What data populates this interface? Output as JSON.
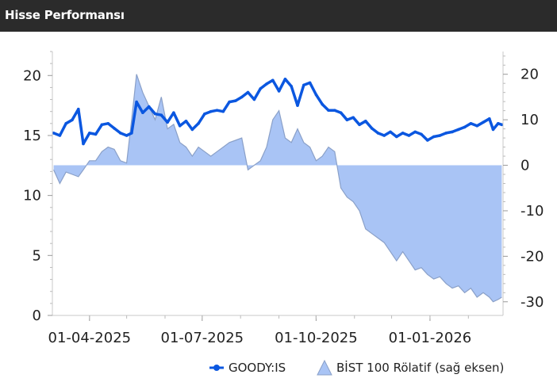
{
  "header": {
    "title": "Hisse Performansı"
  },
  "colors": {
    "header_bg": "#2b2b2b",
    "price_line": "#0b57e0",
    "relative_fill": "#a9c4f5",
    "relative_stroke": "#8aa0c8",
    "axis": "#c8c8c8"
  },
  "chart_data": {
    "type": "line",
    "title": "",
    "xlabel": "",
    "ylabel": "",
    "y_left_lim": [
      0,
      22
    ],
    "y_right_lim": [
      -33,
      25
    ],
    "y_left_ticks": [
      0,
      5,
      10,
      15,
      20
    ],
    "y_right_ticks": [
      -30,
      -20,
      -10,
      0,
      10,
      20
    ],
    "x_range": [
      "2025-03-02",
      "2026-03-01"
    ],
    "x_ticks": [
      "01-04-2025",
      "01-07-2025",
      "01-10-2025",
      "01-01-2026"
    ],
    "grid": false,
    "legend_position": "bottom-right",
    "series": [
      {
        "name": "GOODY:IS",
        "axis": "left",
        "kind": "line",
        "points": [
          [
            "2025-03-03",
            15.2
          ],
          [
            "2025-03-08",
            15.0
          ],
          [
            "2025-03-13",
            16.0
          ],
          [
            "2025-03-18",
            16.3
          ],
          [
            "2025-03-23",
            17.2
          ],
          [
            "2025-03-27",
            14.3
          ],
          [
            "2025-04-01",
            15.2
          ],
          [
            "2025-04-06",
            15.1
          ],
          [
            "2025-04-11",
            15.9
          ],
          [
            "2025-04-16",
            16.0
          ],
          [
            "2025-04-21",
            15.6
          ],
          [
            "2025-04-26",
            15.2
          ],
          [
            "2025-05-01",
            15.0
          ],
          [
            "2025-05-05",
            15.2
          ],
          [
            "2025-05-09",
            17.8
          ],
          [
            "2025-05-14",
            16.9
          ],
          [
            "2025-05-19",
            17.4
          ],
          [
            "2025-05-24",
            16.8
          ],
          [
            "2025-05-29",
            16.7
          ],
          [
            "2025-06-03",
            16.1
          ],
          [
            "2025-06-08",
            16.9
          ],
          [
            "2025-06-13",
            15.8
          ],
          [
            "2025-06-18",
            16.2
          ],
          [
            "2025-06-23",
            15.5
          ],
          [
            "2025-06-28",
            16.0
          ],
          [
            "2025-07-03",
            16.8
          ],
          [
            "2025-07-08",
            17.0
          ],
          [
            "2025-07-13",
            17.1
          ],
          [
            "2025-07-18",
            17.0
          ],
          [
            "2025-07-23",
            17.8
          ],
          [
            "2025-07-28",
            17.9
          ],
          [
            "2025-08-02",
            18.2
          ],
          [
            "2025-08-07",
            18.6
          ],
          [
            "2025-08-12",
            18.0
          ],
          [
            "2025-08-17",
            18.9
          ],
          [
            "2025-08-22",
            19.3
          ],
          [
            "2025-08-27",
            19.6
          ],
          [
            "2025-09-01",
            18.7
          ],
          [
            "2025-09-06",
            19.7
          ],
          [
            "2025-09-11",
            19.1
          ],
          [
            "2025-09-16",
            17.5
          ],
          [
            "2025-09-21",
            19.2
          ],
          [
            "2025-09-26",
            19.4
          ],
          [
            "2025-10-01",
            18.4
          ],
          [
            "2025-10-06",
            17.6
          ],
          [
            "2025-10-11",
            17.1
          ],
          [
            "2025-10-16",
            17.1
          ],
          [
            "2025-10-21",
            16.9
          ],
          [
            "2025-10-26",
            16.3
          ],
          [
            "2025-10-31",
            16.5
          ],
          [
            "2025-11-05",
            15.9
          ],
          [
            "2025-11-10",
            16.2
          ],
          [
            "2025-11-15",
            15.6
          ],
          [
            "2025-11-20",
            15.2
          ],
          [
            "2025-11-25",
            15.0
          ],
          [
            "2025-11-30",
            15.3
          ],
          [
            "2025-12-05",
            14.9
          ],
          [
            "2025-12-10",
            15.2
          ],
          [
            "2025-12-15",
            15.0
          ],
          [
            "2025-12-20",
            15.3
          ],
          [
            "2025-12-25",
            15.1
          ],
          [
            "2025-12-30",
            14.6
          ],
          [
            "2026-01-04",
            14.9
          ],
          [
            "2026-01-09",
            15.0
          ],
          [
            "2026-01-14",
            15.2
          ],
          [
            "2026-01-19",
            15.3
          ],
          [
            "2026-01-24",
            15.5
          ],
          [
            "2026-01-29",
            15.7
          ],
          [
            "2026-02-03",
            16.0
          ],
          [
            "2026-02-08",
            15.8
          ],
          [
            "2026-02-13",
            16.1
          ],
          [
            "2026-02-18",
            16.4
          ],
          [
            "2026-02-21",
            15.5
          ],
          [
            "2026-02-25",
            16.0
          ],
          [
            "2026-02-28",
            15.9
          ]
        ]
      },
      {
        "name": "BİST 100 Rölatif (sağ eksen)",
        "axis": "right",
        "kind": "area",
        "points": [
          [
            "2025-03-03",
            -1.0
          ],
          [
            "2025-03-08",
            -4.0
          ],
          [
            "2025-03-13",
            -1.5
          ],
          [
            "2025-03-18",
            -2.0
          ],
          [
            "2025-03-23",
            -2.5
          ],
          [
            "2025-03-27",
            -1.0
          ],
          [
            "2025-04-01",
            1.0
          ],
          [
            "2025-04-06",
            1.0
          ],
          [
            "2025-04-11",
            3.0
          ],
          [
            "2025-04-16",
            4.0
          ],
          [
            "2025-04-21",
            3.5
          ],
          [
            "2025-04-26",
            1.0
          ],
          [
            "2025-05-01",
            0.5
          ],
          [
            "2025-05-05",
            10.0
          ],
          [
            "2025-05-09",
            20.0
          ],
          [
            "2025-05-14",
            16.0
          ],
          [
            "2025-05-19",
            13.0
          ],
          [
            "2025-05-24",
            10.0
          ],
          [
            "2025-05-29",
            15.0
          ],
          [
            "2025-06-03",
            8.0
          ],
          [
            "2025-06-08",
            9.0
          ],
          [
            "2025-06-13",
            5.0
          ],
          [
            "2025-06-18",
            4.0
          ],
          [
            "2025-06-23",
            2.0
          ],
          [
            "2025-06-28",
            4.0
          ],
          [
            "2025-07-03",
            3.0
          ],
          [
            "2025-07-08",
            2.0
          ],
          [
            "2025-07-13",
            3.0
          ],
          [
            "2025-07-18",
            4.0
          ],
          [
            "2025-07-23",
            5.0
          ],
          [
            "2025-07-28",
            5.5
          ],
          [
            "2025-08-02",
            6.0
          ],
          [
            "2025-08-07",
            -1.0
          ],
          [
            "2025-08-12",
            0.0
          ],
          [
            "2025-08-17",
            1.0
          ],
          [
            "2025-08-22",
            4.0
          ],
          [
            "2025-08-27",
            10.0
          ],
          [
            "2025-09-01",
            12.0
          ],
          [
            "2025-09-06",
            6.0
          ],
          [
            "2025-09-11",
            5.0
          ],
          [
            "2025-09-16",
            8.0
          ],
          [
            "2025-09-21",
            5.0
          ],
          [
            "2025-09-26",
            4.0
          ],
          [
            "2025-10-01",
            1.0
          ],
          [
            "2025-10-06",
            2.0
          ],
          [
            "2025-10-11",
            4.0
          ],
          [
            "2025-10-16",
            3.0
          ],
          [
            "2025-10-21",
            -5.0
          ],
          [
            "2025-10-26",
            -7.0
          ],
          [
            "2025-10-31",
            -8.0
          ],
          [
            "2025-11-05",
            -10.0
          ],
          [
            "2025-11-10",
            -14.0
          ],
          [
            "2025-11-15",
            -15.0
          ],
          [
            "2025-11-20",
            -16.0
          ],
          [
            "2025-11-25",
            -17.0
          ],
          [
            "2025-11-30",
            -19.0
          ],
          [
            "2025-12-05",
            -21.0
          ],
          [
            "2025-12-10",
            -19.0
          ],
          [
            "2025-12-15",
            -21.0
          ],
          [
            "2025-12-20",
            -23.0
          ],
          [
            "2025-12-25",
            -22.5
          ],
          [
            "2025-12-30",
            -24.0
          ],
          [
            "2026-01-04",
            -25.0
          ],
          [
            "2026-01-09",
            -24.5
          ],
          [
            "2026-01-14",
            -26.0
          ],
          [
            "2026-01-19",
            -27.0
          ],
          [
            "2026-01-24",
            -26.5
          ],
          [
            "2026-01-29",
            -28.0
          ],
          [
            "2026-02-03",
            -27.0
          ],
          [
            "2026-02-08",
            -29.0
          ],
          [
            "2026-02-13",
            -28.0
          ],
          [
            "2026-02-18",
            -29.0
          ],
          [
            "2026-02-21",
            -30.0
          ],
          [
            "2026-02-25",
            -29.5
          ],
          [
            "2026-02-28",
            -29.0
          ]
        ]
      }
    ]
  }
}
